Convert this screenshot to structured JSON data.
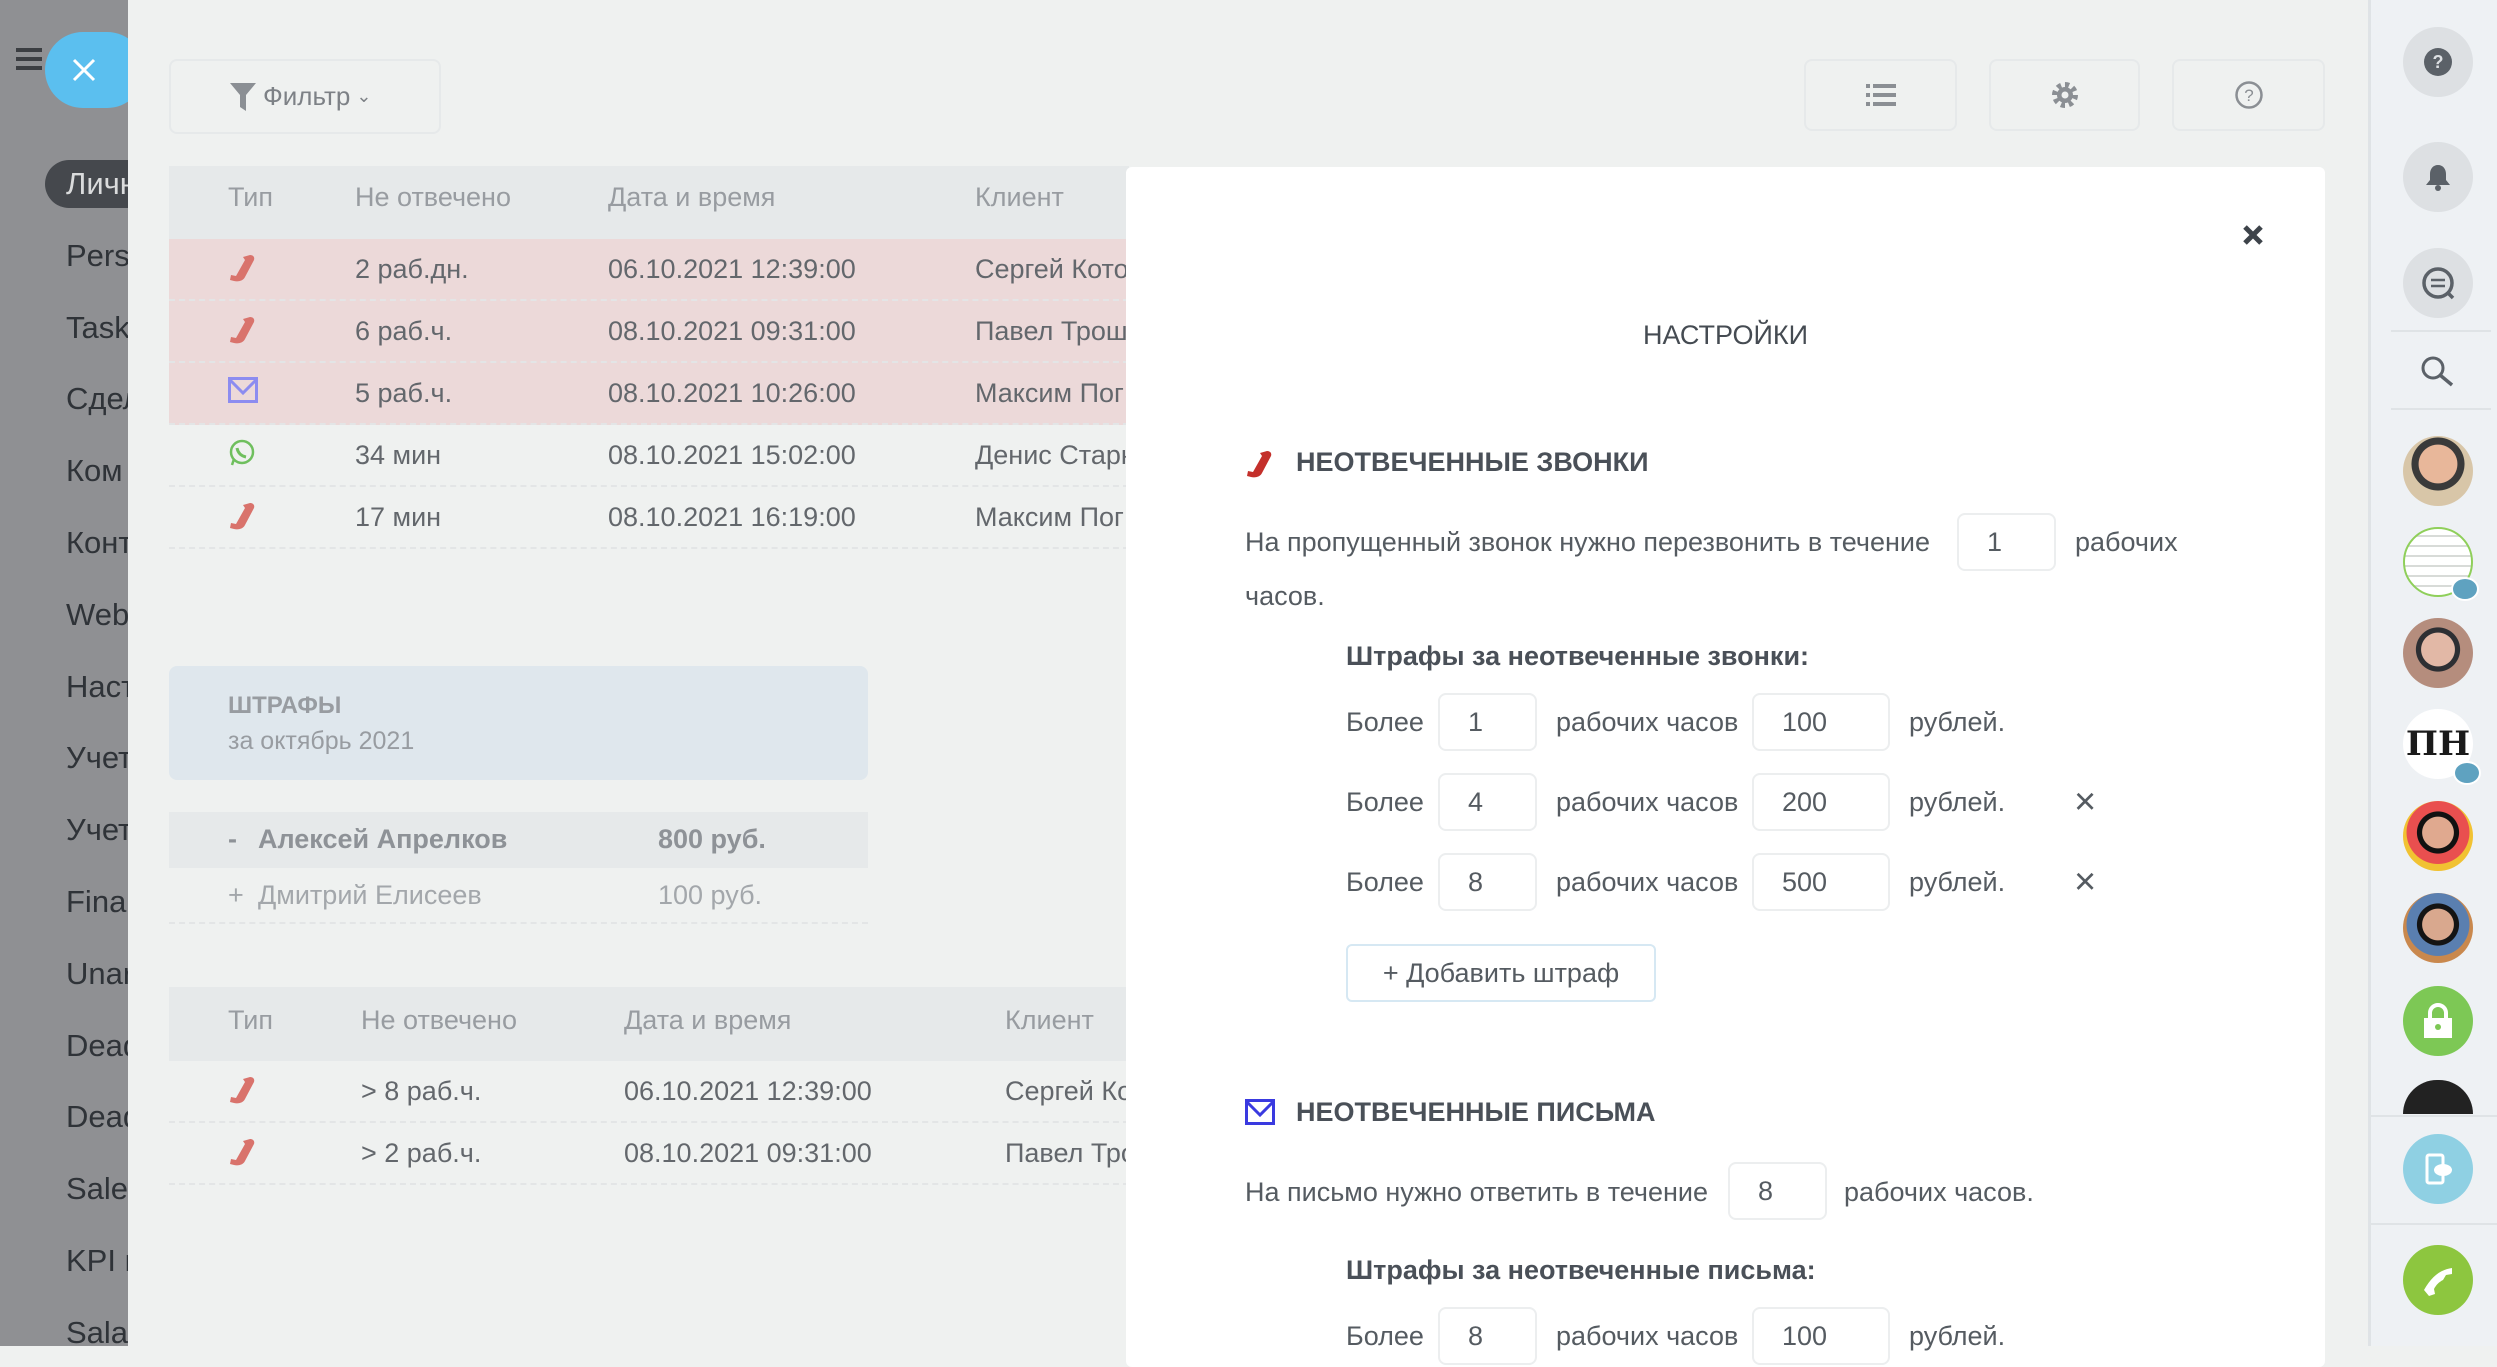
{
  "left_nav": {
    "items": [
      "Личн",
      "Pers",
      "Task",
      "Сдел",
      "Ком",
      "Конт",
      "Web",
      "Наст",
      "Учет",
      "Учет",
      "Fina",
      "Unar",
      "Dead",
      "Dead",
      "Sales",
      "KPI и",
      "Salar"
    ]
  },
  "toolbar": {
    "filter_label": "Фильтр"
  },
  "table1": {
    "headers": [
      "Тип",
      "Не отвечено",
      "Дата и время",
      "Клиент"
    ],
    "rows": [
      {
        "type": "phone",
        "unanswered": "2 раб.дн.",
        "datetime": "06.10.2021 12:39:00",
        "client": "Сергей Котов",
        "overdue": true
      },
      {
        "type": "phone",
        "unanswered": "6 раб.ч.",
        "datetime": "08.10.2021 09:31:00",
        "client": "Павел Трошин",
        "overdue": true
      },
      {
        "type": "email",
        "unanswered": "5 раб.ч.",
        "datetime": "08.10.2021 10:26:00",
        "client": "Максим Пог",
        "overdue": true
      },
      {
        "type": "whatsapp",
        "unanswered": "34 мин",
        "datetime": "08.10.2021 15:02:00",
        "client": "Денис Старк",
        "overdue": false
      },
      {
        "type": "phone",
        "unanswered": "17 мин",
        "datetime": "08.10.2021 16:19:00",
        "client": "Максим Пог",
        "overdue": false
      }
    ]
  },
  "penalties": {
    "title": "ШТРАФЫ",
    "period": "за октябрь 2021",
    "rows": [
      {
        "toggle": "-",
        "name": "Алексей Апрелков",
        "amount": "800 руб.",
        "expanded": true
      },
      {
        "toggle": "+",
        "name": "Дмитрий Елисеев",
        "amount": "100 руб.",
        "expanded": false
      }
    ]
  },
  "table2": {
    "headers": [
      "Тип",
      "Не отвечено",
      "Дата и время",
      "Клиент"
    ],
    "rows": [
      {
        "type": "phone",
        "unanswered": "> 8 раб.ч.",
        "datetime": "06.10.2021 12:39:00",
        "client": "Сергей Ко"
      },
      {
        "type": "phone",
        "unanswered": "> 2 раб.ч.",
        "datetime": "08.10.2021 09:31:00",
        "client": "Павел Тро"
      }
    ]
  },
  "modal": {
    "title": "НАСТРОЙКИ",
    "calls": {
      "heading": "НЕОТВЕЧЕННЫЕ ЗВОНКИ",
      "text_before": "На пропущенный звонок нужно перезвонить в течение",
      "hours_value": "1",
      "text_after_1": "рабочих",
      "text_after_2": "часов.",
      "penalties_heading": "Штрафы за неотвеченные звонки:",
      "rules": [
        {
          "more": "Более",
          "hours": "1",
          "hours_label": "рабочих часов",
          "amount": "100",
          "currency": "рублей.",
          "removable": false
        },
        {
          "more": "Более",
          "hours": "4",
          "hours_label": "рабочих часов",
          "amount": "200",
          "currency": "рублей.",
          "removable": true
        },
        {
          "more": "Более",
          "hours": "8",
          "hours_label": "рабочих часов",
          "amount": "500",
          "currency": "рублей.",
          "removable": true
        }
      ],
      "add_label": "+ Добавить штраф",
      "remove_glyph": "×"
    },
    "emails": {
      "heading": "НЕОТВЕЧЕННЫЕ ПИСЬМА",
      "text_before": "На письмо нужно ответить в течение",
      "hours_value": "8",
      "text_after": "рабочих часов.",
      "penalties_heading": "Штрафы за неотвеченные письма:",
      "rules": [
        {
          "more": "Более",
          "hours": "8",
          "hours_label": "рабочих часов",
          "amount": "100",
          "currency": "рублей."
        }
      ]
    }
  },
  "colors": {
    "phone": "#d9736c",
    "phone_modal": "#c4302b",
    "email": "#8c8cf0",
    "email_modal": "#3a3ae0",
    "whatsapp": "#6fbf5e",
    "overdue_row": "#ecd9d9",
    "close_button": "#5bbfef",
    "call_button": "#8dc63f",
    "lock_button": "#7dc855"
  }
}
